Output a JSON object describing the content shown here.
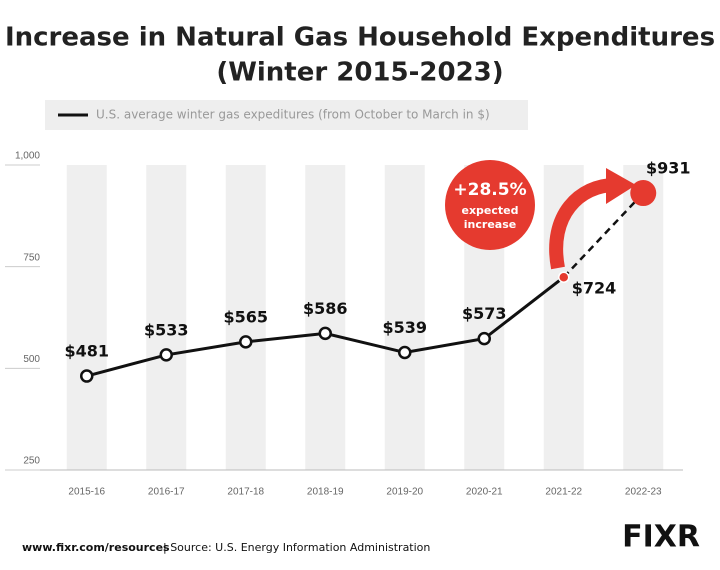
{
  "chart_data": {
    "type": "line",
    "title": "Increase in Natural Gas Household Expenditures",
    "subtitle": "(Winter 2015-2023)",
    "categories": [
      "2015-16",
      "2016-17",
      "2017-18",
      "2018-19",
      "2019-20",
      "2020-21",
      "2021-22",
      "2022-23"
    ],
    "series": [
      {
        "name": "U.S. average winter gas expeditures (from October to March in $)",
        "color": "#111111",
        "values": [
          481,
          533,
          565,
          586,
          539,
          573,
          724,
          931
        ],
        "value_labels": [
          "$481",
          "$533",
          "$565",
          "$586",
          "$539",
          "$573",
          "$724",
          "$931"
        ]
      }
    ],
    "highlight_color": "#e53a2f",
    "projected_last": true,
    "ylim": [
      250,
      1000
    ],
    "yticks": [
      250,
      500,
      750,
      {
        "value": 1000,
        "label": "1,000"
      }
    ],
    "annotation": {
      "label": "+28.5%",
      "text_lines": [
        "expected",
        "increase"
      ]
    },
    "footer": {
      "url": "www.fixr.com/resources",
      "source": "| Source: U.S. Energy Information Administration"
    },
    "logo": "FIXR"
  }
}
